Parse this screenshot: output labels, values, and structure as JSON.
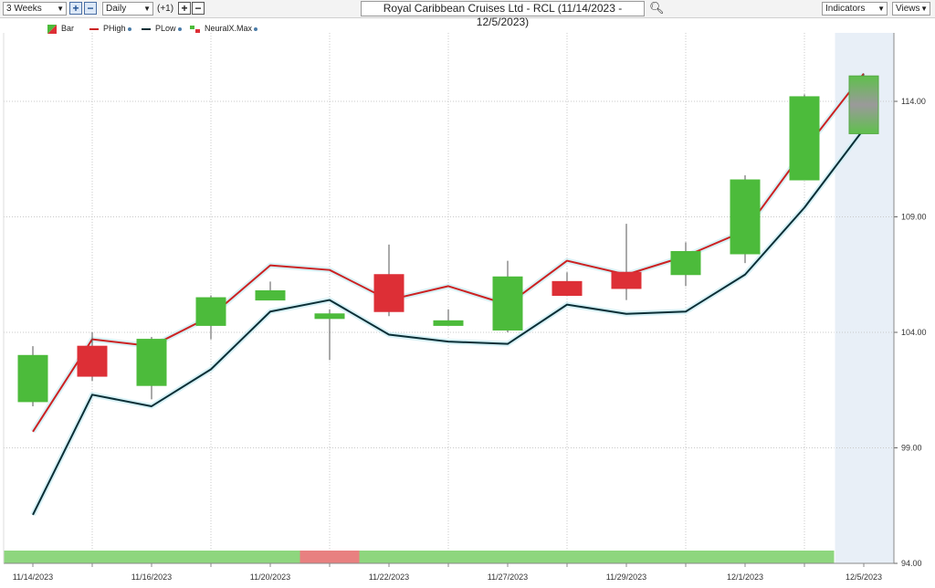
{
  "toolbar": {
    "period": "3 Weeks",
    "interval": "Daily",
    "offset": "(+1)",
    "symbol_title": "Royal Caribbean Cruises Ltd - RCL (11/14/2023 - 12/5/2023)",
    "indicators_label": "Indicators",
    "views_label": "Views"
  },
  "legend": [
    {
      "label": "Bar",
      "icon": "bar-swatch-icon"
    },
    {
      "label": "PHigh",
      "color": "#cc2222"
    },
    {
      "label": "PLow",
      "color": "#0b2f36"
    },
    {
      "label": "NeuralX.Max",
      "icon": "neuralx-swatch-icon"
    }
  ],
  "colors": {
    "up": "#4cbb3b",
    "down": "#dd2f36",
    "phigh": "#cc2222",
    "plow": "#0b2f36",
    "neural_up": "#8ed67e",
    "neural_down": "#e88080",
    "forecast_bg": "#e8eff7"
  },
  "chart_data": {
    "type": "candlestick",
    "ylim": [
      94,
      117
    ],
    "yticks": [
      "94.00",
      "99.00",
      "104.00",
      "109.00",
      "114.00"
    ],
    "xtick_labels": [
      {
        "i": 0,
        "label": "11/14/2023"
      },
      {
        "i": 2,
        "label": "11/16/2023"
      },
      {
        "i": 4,
        "label": "11/20/2023"
      },
      {
        "i": 6,
        "label": "11/22/2023"
      },
      {
        "i": 8,
        "label": "11/27/2023"
      },
      {
        "i": 10,
        "label": "11/29/2023"
      },
      {
        "i": 12,
        "label": "12/1/2023"
      },
      {
        "i": 14,
        "label": "12/5/2023"
      }
    ],
    "candles": [
      {
        "open": 101.0,
        "high": 103.4,
        "low": 100.8,
        "close": 103.0
      },
      {
        "open": 103.4,
        "high": 104.0,
        "low": 101.9,
        "close": 102.1
      },
      {
        "open": 101.7,
        "high": 103.8,
        "low": 101.1,
        "close": 103.7
      },
      {
        "open": 104.3,
        "high": 105.6,
        "low": 103.7,
        "close": 105.5
      },
      {
        "open": 105.4,
        "high": 106.2,
        "low": 105.4,
        "close": 105.8
      },
      {
        "open": 104.6,
        "high": 105.0,
        "low": 102.8,
        "close": 104.8
      },
      {
        "open": 106.5,
        "high": 107.8,
        "low": 104.7,
        "close": 104.9
      },
      {
        "open": 104.3,
        "high": 105.0,
        "low": 104.3,
        "close": 104.5
      },
      {
        "open": 104.1,
        "high": 107.1,
        "low": 104.0,
        "close": 106.4
      },
      {
        "open": 106.2,
        "high": 106.6,
        "low": 105.6,
        "close": 105.6
      },
      {
        "open": 106.6,
        "high": 108.7,
        "low": 105.4,
        "close": 105.9
      },
      {
        "open": 106.5,
        "high": 107.9,
        "low": 106.0,
        "close": 107.5
      },
      {
        "open": 107.4,
        "high": 110.8,
        "low": 107.0,
        "close": 110.6
      },
      {
        "open": 110.6,
        "high": 114.3,
        "low": 110.6,
        "close": 114.2
      },
      {
        "open": 112.6,
        "high": 115.2,
        "low": 112.6,
        "close": 115.1,
        "forecast": true
      }
    ],
    "phigh": [
      99.7,
      103.7,
      103.4,
      104.7,
      106.9,
      106.7,
      105.4,
      106.0,
      105.2,
      107.1,
      106.5,
      107.3,
      108.4,
      111.9,
      115.2
    ],
    "plow": [
      96.1,
      101.3,
      100.8,
      102.4,
      104.9,
      105.4,
      103.9,
      103.6,
      103.5,
      105.2,
      104.8,
      104.9,
      106.5,
      109.4,
      112.8
    ],
    "neuralx": [
      "up",
      "up",
      "up",
      "up",
      "up",
      "down",
      "up",
      "up",
      "up",
      "up",
      "up",
      "up",
      "up",
      "up"
    ]
  }
}
